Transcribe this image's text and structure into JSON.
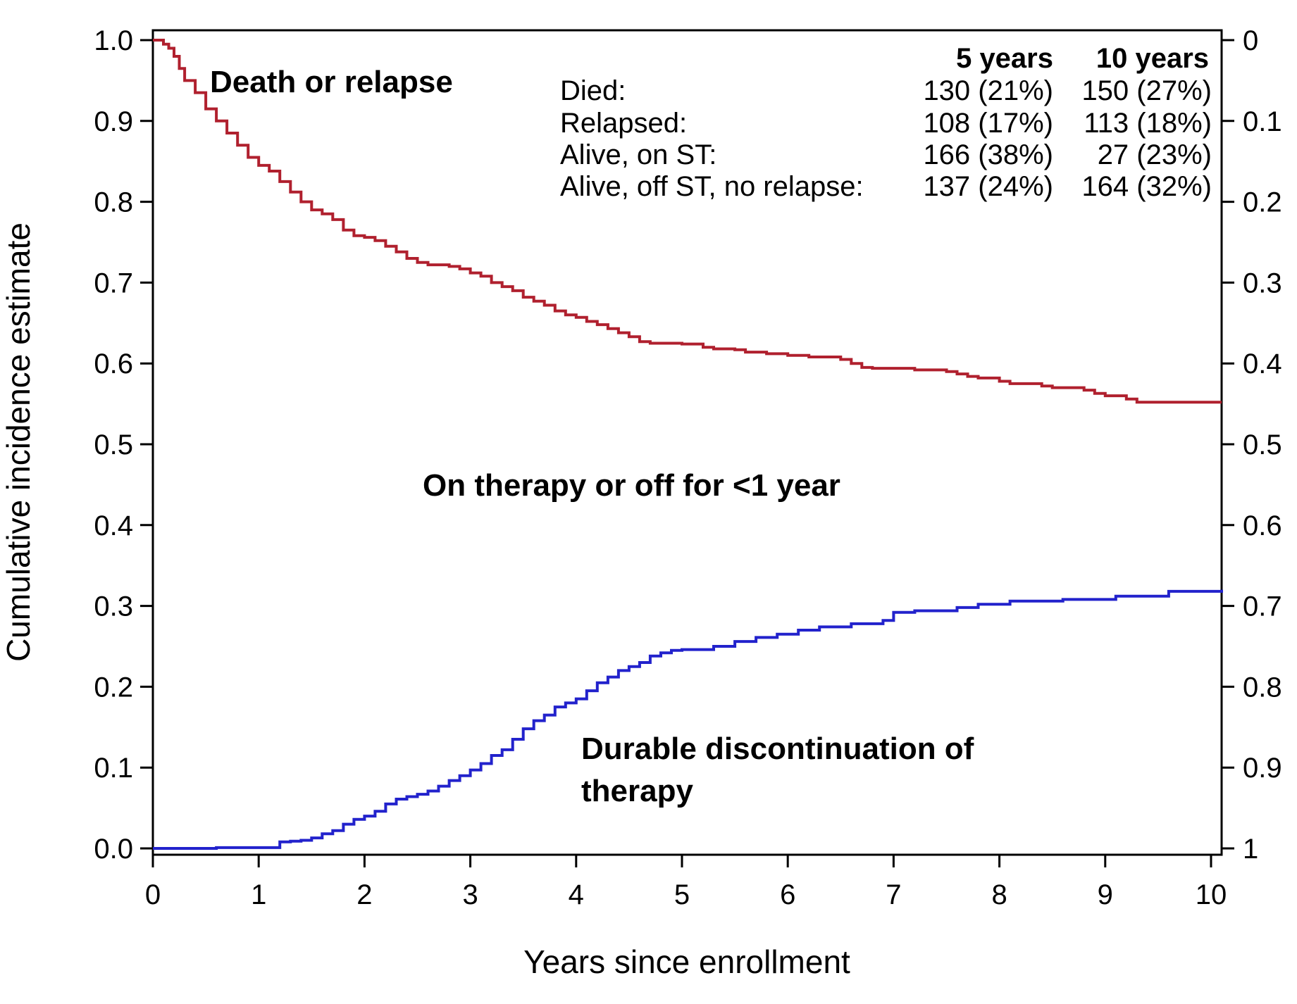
{
  "chart_data": {
    "type": "line",
    "xlabel": "Years since enrollment",
    "ylabel": "Cumulative incidence estimate",
    "xlim": [
      0,
      10.1
    ],
    "ylim": [
      0,
      1.0
    ],
    "y2lim": [
      1,
      0
    ],
    "x_ticks": [
      "0",
      "1",
      "2",
      "3",
      "4",
      "5",
      "6",
      "7",
      "8",
      "9",
      "10"
    ],
    "y_ticks": [
      "0.0",
      "0.1",
      "0.2",
      "0.3",
      "0.4",
      "0.5",
      "0.6",
      "0.7",
      "0.8",
      "0.9",
      "1.0"
    ],
    "y2_ticks": [
      "1",
      "0.9",
      "0.8",
      "0.7",
      "0.6",
      "0.5",
      "0.4",
      "0.3",
      "0.2",
      "0.1",
      "0"
    ],
    "grid": false,
    "step": true,
    "series": [
      {
        "color": "#b0202e",
        "points": [
          [
            0,
            1.0
          ],
          [
            0.1,
            0.995
          ],
          [
            0.15,
            0.99
          ],
          [
            0.2,
            0.98
          ],
          [
            0.25,
            0.965
          ],
          [
            0.3,
            0.95
          ],
          [
            0.4,
            0.935
          ],
          [
            0.5,
            0.915
          ],
          [
            0.6,
            0.9
          ],
          [
            0.7,
            0.885
          ],
          [
            0.8,
            0.87
          ],
          [
            0.9,
            0.855
          ],
          [
            1.0,
            0.845
          ],
          [
            1.1,
            0.838
          ],
          [
            1.2,
            0.825
          ],
          [
            1.3,
            0.812
          ],
          [
            1.4,
            0.8
          ],
          [
            1.5,
            0.79
          ],
          [
            1.6,
            0.785
          ],
          [
            1.7,
            0.778
          ],
          [
            1.8,
            0.765
          ],
          [
            1.9,
            0.758
          ],
          [
            2.0,
            0.756
          ],
          [
            2.1,
            0.752
          ],
          [
            2.2,
            0.745
          ],
          [
            2.3,
            0.738
          ],
          [
            2.4,
            0.73
          ],
          [
            2.5,
            0.725
          ],
          [
            2.6,
            0.722
          ],
          [
            2.8,
            0.72
          ],
          [
            2.9,
            0.717
          ],
          [
            3.0,
            0.712
          ],
          [
            3.1,
            0.708
          ],
          [
            3.2,
            0.7
          ],
          [
            3.3,
            0.695
          ],
          [
            3.4,
            0.69
          ],
          [
            3.5,
            0.682
          ],
          [
            3.6,
            0.677
          ],
          [
            3.7,
            0.672
          ],
          [
            3.8,
            0.665
          ],
          [
            3.9,
            0.66
          ],
          [
            4.0,
            0.657
          ],
          [
            4.1,
            0.652
          ],
          [
            4.2,
            0.648
          ],
          [
            4.3,
            0.643
          ],
          [
            4.4,
            0.638
          ],
          [
            4.5,
            0.633
          ],
          [
            4.6,
            0.627
          ],
          [
            4.7,
            0.625
          ],
          [
            5.0,
            0.624
          ],
          [
            5.2,
            0.62
          ],
          [
            5.3,
            0.618
          ],
          [
            5.5,
            0.617
          ],
          [
            5.6,
            0.614
          ],
          [
            5.8,
            0.612
          ],
          [
            6.0,
            0.61
          ],
          [
            6.2,
            0.608
          ],
          [
            6.5,
            0.605
          ],
          [
            6.6,
            0.6
          ],
          [
            6.7,
            0.595
          ],
          [
            6.8,
            0.594
          ],
          [
            7.2,
            0.592
          ],
          [
            7.5,
            0.59
          ],
          [
            7.6,
            0.587
          ],
          [
            7.7,
            0.584
          ],
          [
            7.8,
            0.582
          ],
          [
            8.0,
            0.578
          ],
          [
            8.1,
            0.575
          ],
          [
            8.4,
            0.572
          ],
          [
            8.5,
            0.57
          ],
          [
            8.8,
            0.567
          ],
          [
            8.9,
            0.563
          ],
          [
            9.0,
            0.56
          ],
          [
            9.2,
            0.556
          ],
          [
            9.3,
            0.552
          ],
          [
            10.1,
            0.552
          ]
        ]
      },
      {
        "color": "#2222cc",
        "points": [
          [
            0,
            0.0
          ],
          [
            0.5,
            0.0
          ],
          [
            0.6,
            0.001
          ],
          [
            1.1,
            0.001
          ],
          [
            1.2,
            0.008
          ],
          [
            1.3,
            0.009
          ],
          [
            1.4,
            0.01
          ],
          [
            1.5,
            0.013
          ],
          [
            1.6,
            0.018
          ],
          [
            1.7,
            0.022
          ],
          [
            1.8,
            0.03
          ],
          [
            1.9,
            0.036
          ],
          [
            2.0,
            0.04
          ],
          [
            2.1,
            0.046
          ],
          [
            2.2,
            0.055
          ],
          [
            2.3,
            0.061
          ],
          [
            2.4,
            0.064
          ],
          [
            2.5,
            0.067
          ],
          [
            2.6,
            0.071
          ],
          [
            2.7,
            0.077
          ],
          [
            2.8,
            0.084
          ],
          [
            2.9,
            0.09
          ],
          [
            3.0,
            0.097
          ],
          [
            3.1,
            0.105
          ],
          [
            3.2,
            0.115
          ],
          [
            3.3,
            0.122
          ],
          [
            3.4,
            0.135
          ],
          [
            3.5,
            0.148
          ],
          [
            3.6,
            0.158
          ],
          [
            3.7,
            0.165
          ],
          [
            3.8,
            0.175
          ],
          [
            3.9,
            0.18
          ],
          [
            4.0,
            0.185
          ],
          [
            4.1,
            0.195
          ],
          [
            4.2,
            0.205
          ],
          [
            4.3,
            0.212
          ],
          [
            4.4,
            0.22
          ],
          [
            4.5,
            0.225
          ],
          [
            4.6,
            0.23
          ],
          [
            4.7,
            0.238
          ],
          [
            4.8,
            0.242
          ],
          [
            4.9,
            0.245
          ],
          [
            5.0,
            0.246
          ],
          [
            5.3,
            0.25
          ],
          [
            5.5,
            0.256
          ],
          [
            5.7,
            0.261
          ],
          [
            5.9,
            0.265
          ],
          [
            6.1,
            0.27
          ],
          [
            6.3,
            0.274
          ],
          [
            6.6,
            0.278
          ],
          [
            6.9,
            0.282
          ],
          [
            7.0,
            0.292
          ],
          [
            7.2,
            0.294
          ],
          [
            7.6,
            0.298
          ],
          [
            7.8,
            0.302
          ],
          [
            8.1,
            0.306
          ],
          [
            8.6,
            0.308
          ],
          [
            9.1,
            0.312
          ],
          [
            9.6,
            0.318
          ],
          [
            10.1,
            0.32
          ]
        ]
      }
    ],
    "annotations": [
      "Death or relapse",
      "On therapy or off for <1 year",
      "Durable discontinuation of",
      "therapy"
    ],
    "summary_table": {
      "columns": [
        "",
        "5 years",
        "10 years"
      ],
      "rows": [
        [
          "Died:",
          "130 (21%)",
          "150 (27%)"
        ],
        [
          "Relapsed:",
          "108 (17%)",
          "113 (18%)"
        ],
        [
          "Alive, on ST:",
          "166 (38%)",
          "27 (23%)"
        ],
        [
          "Alive, off ST, no relapse:",
          "137 (24%)",
          "164 (32%)"
        ]
      ]
    }
  }
}
